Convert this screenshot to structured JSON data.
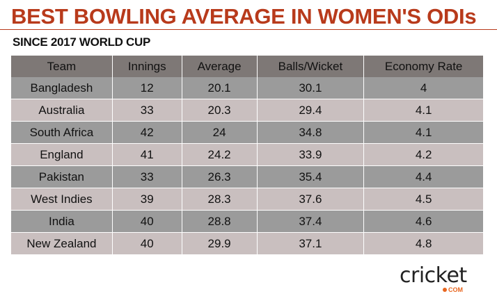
{
  "title": "BEST BOWLING AVERAGE IN WOMEN'S ODIs",
  "subtitle": "SINCE 2017 WORLD CUP",
  "table": {
    "headers": [
      "Team",
      "Innings",
      "Average",
      "Balls/Wicket",
      "Economy Rate"
    ],
    "rows": [
      [
        "Bangladesh",
        "12",
        "20.1",
        "30.1",
        "4"
      ],
      [
        "Australia",
        "33",
        "20.3",
        "29.4",
        "4.1"
      ],
      [
        "South Africa",
        "42",
        "24",
        "34.8",
        "4.1"
      ],
      [
        "England",
        "41",
        "24.2",
        "33.9",
        "4.2"
      ],
      [
        "Pakistan",
        "33",
        "26.3",
        "35.4",
        "4.4"
      ],
      [
        "West Indies",
        "39",
        "28.3",
        "37.6",
        "4.5"
      ],
      [
        "India",
        "40",
        "28.8",
        "37.4",
        "4.6"
      ],
      [
        "New Zealand",
        "40",
        "29.9",
        "37.1",
        "4.8"
      ]
    ]
  },
  "logo": {
    "word": "cricket",
    "suffix": "COM"
  },
  "colors": {
    "title": "#b83a1b",
    "header": "#7e7876",
    "row_dark": "#9b9b9b",
    "row_light": "#c9bfbf",
    "logo_accent": "#e8661f"
  }
}
